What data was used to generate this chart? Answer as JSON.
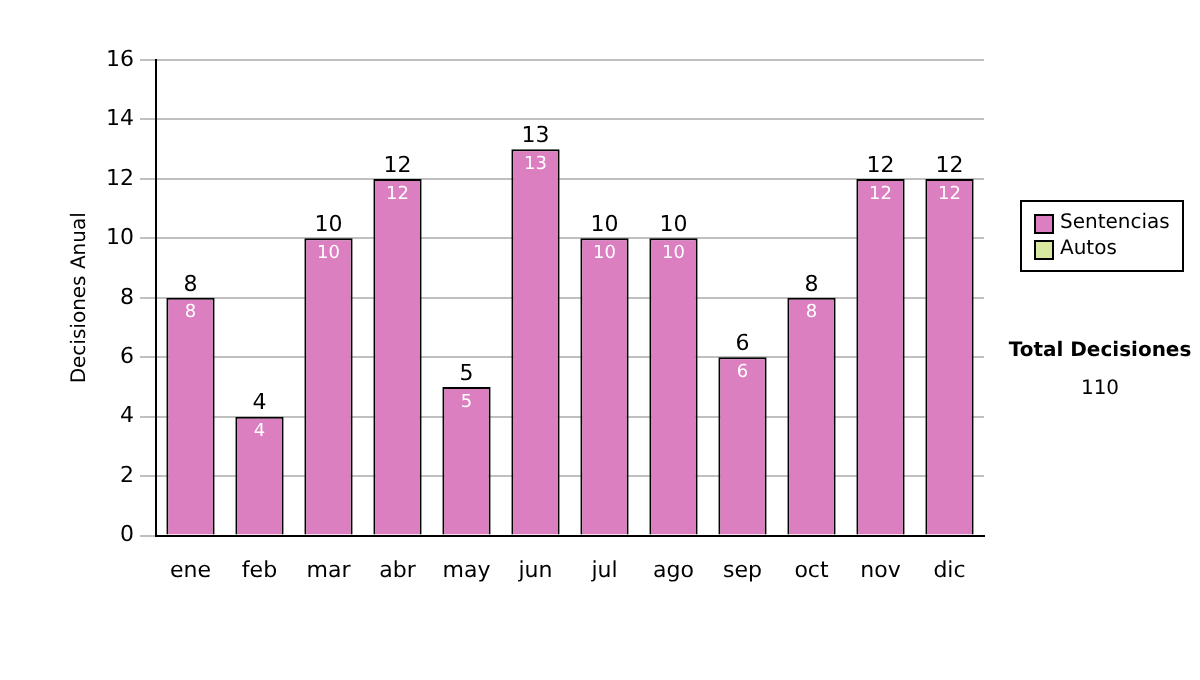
{
  "chart_data": {
    "type": "bar",
    "stacked": true,
    "ylabel": "Decisiones Anual",
    "categories": [
      "ene",
      "feb",
      "mar",
      "abr",
      "may",
      "jun",
      "jul",
      "ago",
      "sep",
      "oct",
      "nov",
      "dic"
    ],
    "series": [
      {
        "name": "Sentencias",
        "color": "#dc7fc0",
        "values": [
          8,
          4,
          10,
          12,
          5,
          13,
          10,
          10,
          6,
          8,
          12,
          12
        ],
        "value_labels": [
          "8",
          "4",
          "10",
          "12",
          "5",
          "13",
          "10",
          "10",
          "6",
          "8",
          "12",
          "12"
        ]
      },
      {
        "name": "Autos",
        "color": "#d8e8a0",
        "values": [
          0,
          0,
          0,
          0,
          0,
          0,
          0,
          0,
          0,
          0,
          0,
          0
        ]
      }
    ],
    "totals": [
      "8",
      "4",
      "10",
      "12",
      "5",
      "13",
      "10",
      "10",
      "6",
      "8",
      "12",
      "12"
    ],
    "ylim": [
      0,
      16
    ],
    "yticks": [
      0,
      2,
      4,
      6,
      8,
      10,
      12,
      14,
      16
    ],
    "grid": "y",
    "legend": "right",
    "annotations": [
      "Total Decisiones",
      "110"
    ]
  }
}
